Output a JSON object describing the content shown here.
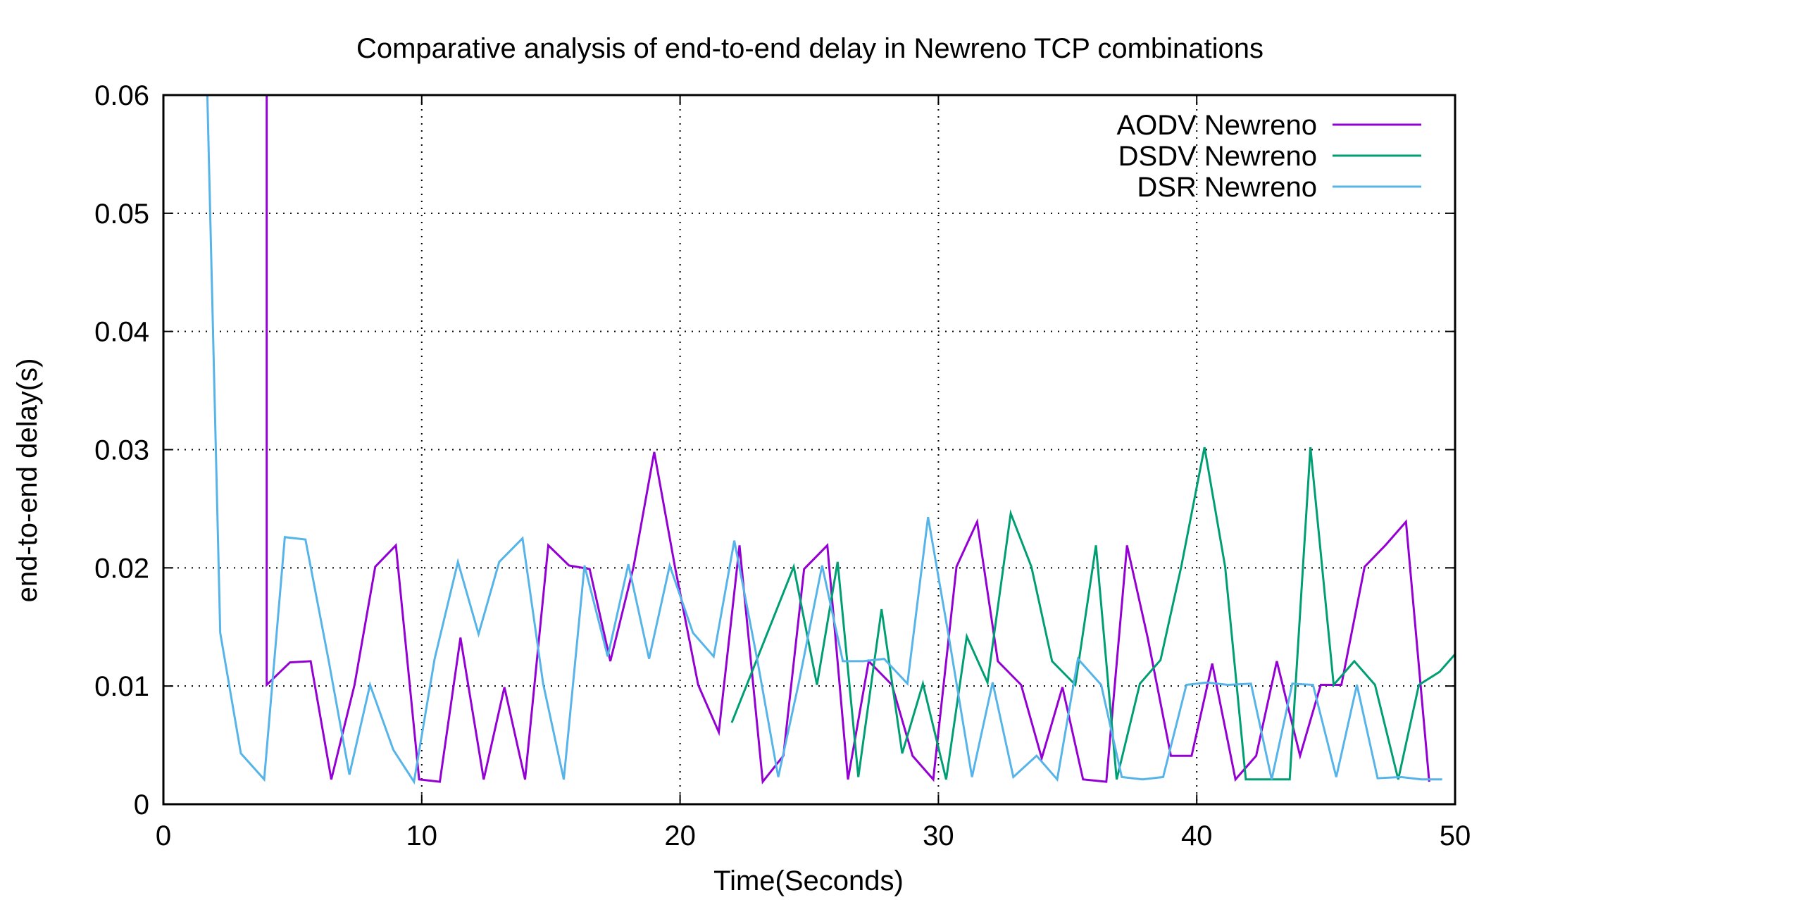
{
  "chart_data": {
    "type": "line",
    "title": "Comparative analysis of end-to-end delay in Newreno TCP combinations",
    "xlabel": "Time(Seconds)",
    "ylabel": "end-to-end delay(s)",
    "xlim": [
      0,
      50
    ],
    "ylim": [
      0,
      0.06
    ],
    "x_ticks": [
      0,
      10,
      20,
      30,
      40,
      50
    ],
    "x_tick_labels": [
      "0",
      "10",
      "20",
      "30",
      "40",
      "50"
    ],
    "y_ticks": [
      0,
      0.01,
      0.02,
      0.03,
      0.04,
      0.05,
      0.06
    ],
    "y_tick_labels": [
      "0",
      "0.01",
      "0.02",
      "0.03",
      "0.04",
      "0.05",
      "0.06"
    ],
    "grid": true,
    "legend_position": "top-right",
    "series": [
      {
        "name": "AODV Newreno",
        "color": "#9400d3",
        "x": [
          4.0,
          4.0,
          4.9,
          5.7,
          6.5,
          7.4,
          8.2,
          9.0,
          9.9,
          10.7,
          11.5,
          12.4,
          13.2,
          14.0,
          14.9,
          15.7,
          16.5,
          17.3,
          18.2,
          19.0,
          19.8,
          20.7,
          21.5,
          22.3,
          23.2,
          24.0,
          24.8,
          25.7,
          26.5,
          27.3,
          28.2,
          29.0,
          29.8,
          30.7,
          31.5,
          32.3,
          33.2,
          34.0,
          34.8,
          35.6,
          36.5,
          37.3,
          38.1,
          39.0,
          39.8,
          40.6,
          41.5,
          42.3,
          43.1,
          44.0,
          44.8,
          45.6,
          46.5,
          47.3,
          48.1,
          49.0
        ],
        "y": [
          0.06,
          0.0101,
          0.012,
          0.0121,
          0.0021,
          0.0101,
          0.0201,
          0.0219,
          0.0021,
          0.0019,
          0.0141,
          0.0021,
          0.0099,
          0.0021,
          0.0219,
          0.0202,
          0.0199,
          0.0121,
          0.0201,
          0.0298,
          0.0201,
          0.0101,
          0.0061,
          0.0219,
          0.0019,
          0.0041,
          0.0199,
          0.0219,
          0.0021,
          0.0121,
          0.0101,
          0.0041,
          0.0021,
          0.0201,
          0.0239,
          0.0121,
          0.0101,
          0.0039,
          0.0099,
          0.0021,
          0.0019,
          0.0219,
          0.0141,
          0.0041,
          0.0041,
          0.0119,
          0.0021,
          0.0041,
          0.0121,
          0.0041,
          0.0101,
          0.0101,
          0.0201,
          0.0219,
          0.0239,
          0.0019
        ]
      },
      {
        "name": "DSDV Newreno",
        "color": "#009e73",
        "x": [
          22.0,
          24.4,
          25.3,
          26.1,
          26.9,
          27.8,
          28.6,
          29.4,
          30.3,
          31.1,
          31.9,
          32.8,
          33.6,
          34.4,
          35.3,
          36.1,
          36.9,
          37.8,
          38.6,
          39.4,
          40.3,
          41.1,
          41.9,
          42.8,
          43.6,
          44.4,
          45.3,
          46.1,
          46.9,
          47.8,
          48.6,
          49.4,
          50.0
        ],
        "y": [
          0.0069,
          0.0201,
          0.0101,
          0.0205,
          0.0023,
          0.0165,
          0.0043,
          0.0102,
          0.0021,
          0.0142,
          0.0103,
          0.0246,
          0.0201,
          0.0121,
          0.0101,
          0.0219,
          0.0021,
          0.0102,
          0.0122,
          0.0201,
          0.0302,
          0.0201,
          0.0021,
          0.0021,
          0.0021,
          0.0302,
          0.0101,
          0.0121,
          0.0101,
          0.0021,
          0.0101,
          0.0112,
          0.0127
        ]
      },
      {
        "name": "DSR Newreno",
        "color": "#56b4e9",
        "x": [
          1.7,
          2.2,
          3.0,
          3.9,
          4.7,
          5.5,
          6.4,
          7.2,
          8.0,
          8.9,
          9.7,
          10.5,
          11.4,
          12.2,
          13.0,
          13.9,
          14.7,
          15.5,
          16.3,
          17.2,
          18.0,
          18.8,
          19.6,
          20.5,
          21.3,
          22.1,
          23.0,
          23.8,
          24.6,
          25.5,
          26.3,
          27.1,
          27.9,
          28.8,
          29.6,
          30.4,
          31.3,
          32.1,
          32.9,
          33.8,
          34.6,
          35.4,
          36.3,
          37.1,
          37.9,
          38.7,
          39.6,
          40.4,
          41.2,
          42.1,
          42.9,
          43.7,
          44.5,
          45.4,
          46.2,
          47.0,
          47.9,
          48.7,
          49.5
        ],
        "y": [
          0.06,
          0.0145,
          0.0043,
          0.0021,
          0.0226,
          0.0224,
          0.0121,
          0.0025,
          0.0101,
          0.0046,
          0.0019,
          0.0123,
          0.0205,
          0.0144,
          0.0205,
          0.0225,
          0.0102,
          0.0021,
          0.0202,
          0.0125,
          0.0203,
          0.0123,
          0.0202,
          0.0145,
          0.0125,
          0.0223,
          0.0121,
          0.0023,
          0.0103,
          0.0202,
          0.0121,
          0.0121,
          0.0123,
          0.0102,
          0.0243,
          0.0142,
          0.0023,
          0.0103,
          0.0023,
          0.0041,
          0.0021,
          0.0123,
          0.0101,
          0.0023,
          0.0021,
          0.0023,
          0.0101,
          0.0103,
          0.0101,
          0.0102,
          0.0021,
          0.0102,
          0.0101,
          0.0023,
          0.0101,
          0.0022,
          0.0023,
          0.0021,
          0.0021
        ]
      }
    ]
  }
}
